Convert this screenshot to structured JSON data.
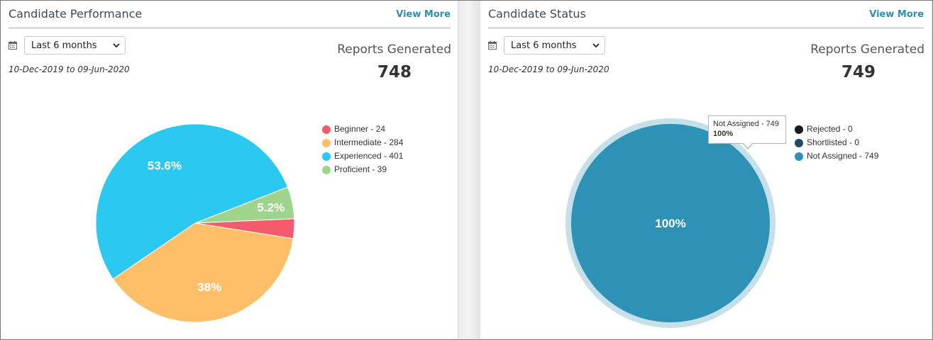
{
  "panels": [
    {
      "title": "Candidate Performance",
      "view_more": "View More",
      "range_select": "Last 6 months",
      "date_range": "10-Dec-2019 to 09-Jun-2020",
      "reports_label": "Reports Generated",
      "reports_value": "748"
    },
    {
      "title": "Candidate Status",
      "view_more": "View More",
      "range_select": "Last 6 months",
      "date_range": "10-Dec-2019 to 09-Jun-2020",
      "reports_label": "Reports Generated",
      "reports_value": "749",
      "tooltip": {
        "line1": "Not Assigned - 749",
        "line2": "100%"
      }
    }
  ],
  "icons": {
    "calendar": "calendar-icon",
    "dropdown": "chevron-down-icon"
  },
  "chart_data": [
    {
      "type": "pie",
      "title": "Candidate Performance",
      "series": [
        {
          "name": "Beginner",
          "value": 24,
          "legend": "Beginner - 24",
          "label": "",
          "color": "#f45b6c"
        },
        {
          "name": "Intermediate",
          "value": 284,
          "legend": "Intermediate - 284",
          "label": "38%",
          "color": "#ffbf69"
        },
        {
          "name": "Experienced",
          "value": 401,
          "legend": "Experienced - 401",
          "label": "53.6%",
          "color": "#2bc8ef"
        },
        {
          "name": "Proficient",
          "value": 39,
          "legend": "Proficient - 39",
          "label": "5.2%",
          "color": "#9fd48c"
        }
      ],
      "legend_position": "right"
    },
    {
      "type": "pie",
      "title": "Candidate Status",
      "series": [
        {
          "name": "Rejected",
          "value": 0,
          "legend": "Rejected - 0",
          "label": "",
          "color": "#151c22"
        },
        {
          "name": "Shortlisted",
          "value": 0,
          "legend": "Shortlisted - 0",
          "label": "",
          "color": "#1e4d6b"
        },
        {
          "name": "Not Assigned",
          "value": 749,
          "legend": "Not Assigned - 749",
          "label": "100%",
          "color": "#2e92b6"
        }
      ],
      "legend_position": "right"
    }
  ]
}
